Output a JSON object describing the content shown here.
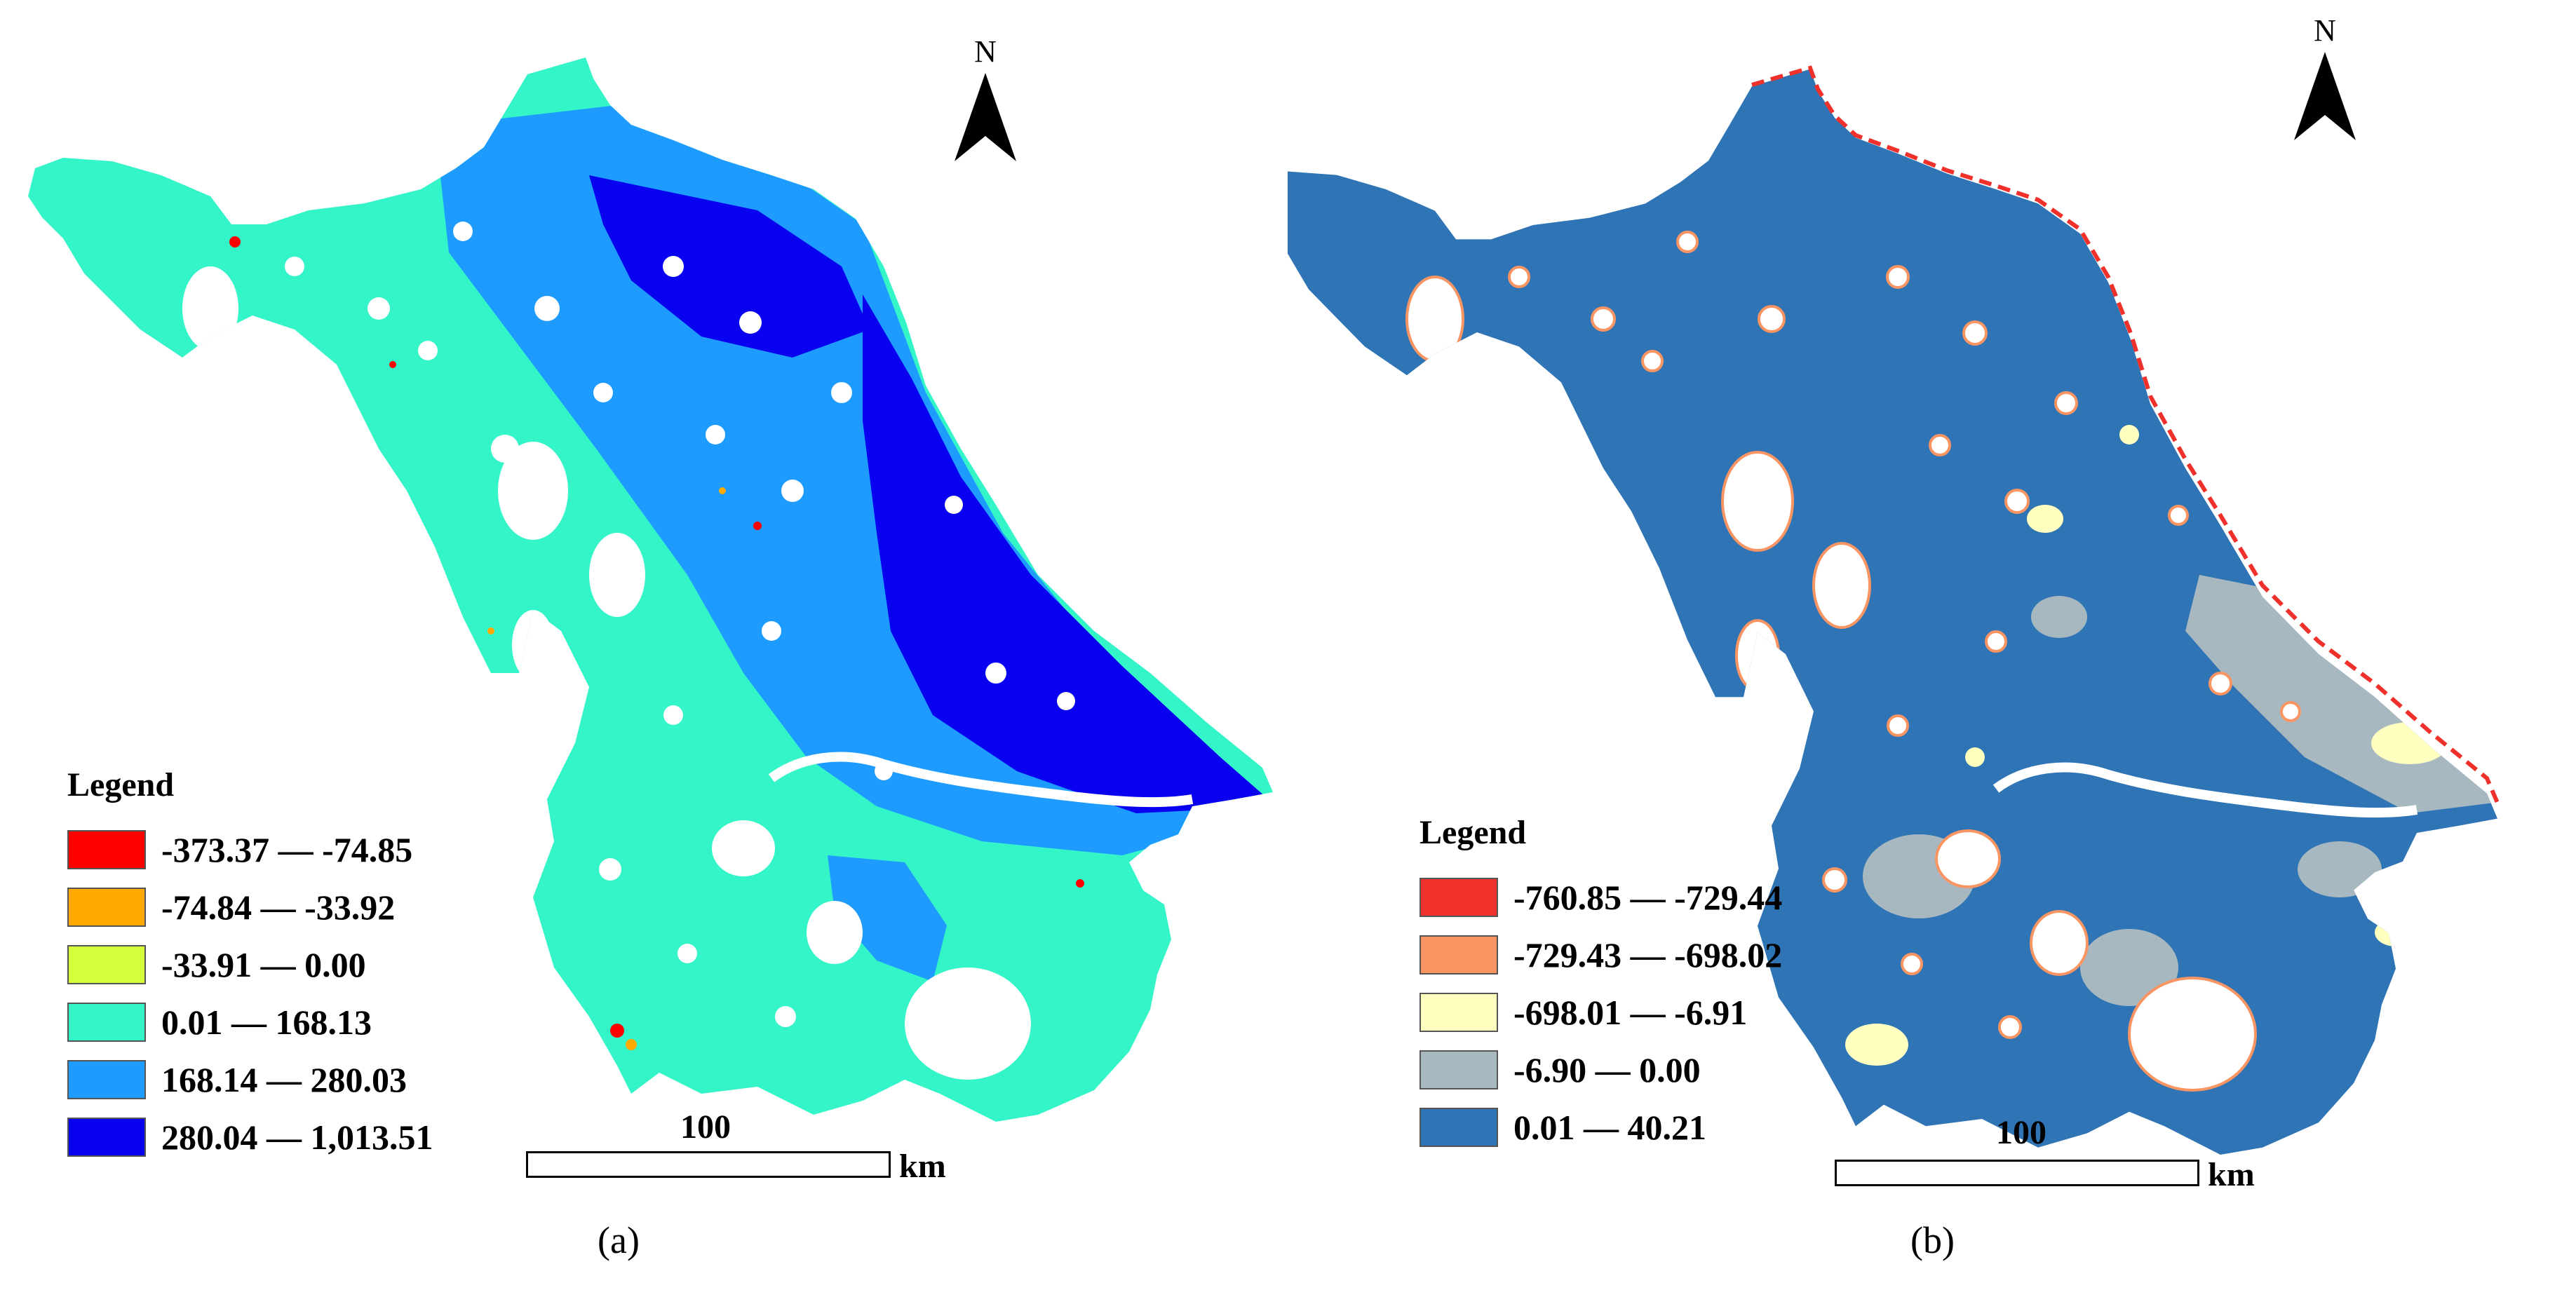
{
  "panels": [
    {
      "id": "a",
      "caption": "(a)",
      "north_label": "N",
      "legend": {
        "title": "Legend",
        "items": [
          {
            "label": "-373.37 — -74.85",
            "color": "#ff0000"
          },
          {
            "label": "-74.84 — -33.92",
            "color": "#ffaa00"
          },
          {
            "label": "-33.91 — 0.00",
            "color": "#d4ff3a"
          },
          {
            "label": "0.01 — 168.13",
            "color": "#33f5c8"
          },
          {
            "label": "168.14 — 280.03",
            "color": "#1e9bff"
          },
          {
            "label": "280.04 — 1,013.51",
            "color": "#0a00f0"
          }
        ]
      },
      "scale": {
        "value": "100",
        "unit": "km"
      }
    },
    {
      "id": "b",
      "caption": "(b)",
      "north_label": "N",
      "legend": {
        "title": "Legend",
        "items": [
          {
            "label": "-760.85 — -729.44",
            "color": "#f0302a"
          },
          {
            "label": "-729.43 — -698.02",
            "color": "#f99563"
          },
          {
            "label": "-698.01 — -6.91",
            "color": "#ffffbf"
          },
          {
            "label": "-6.90 — 0.00",
            "color": "#a8b8c0"
          },
          {
            "label": "0.01 — 40.21",
            "color": "#2f74b5"
          }
        ]
      },
      "scale": {
        "value": "100",
        "unit": "km"
      }
    }
  ]
}
